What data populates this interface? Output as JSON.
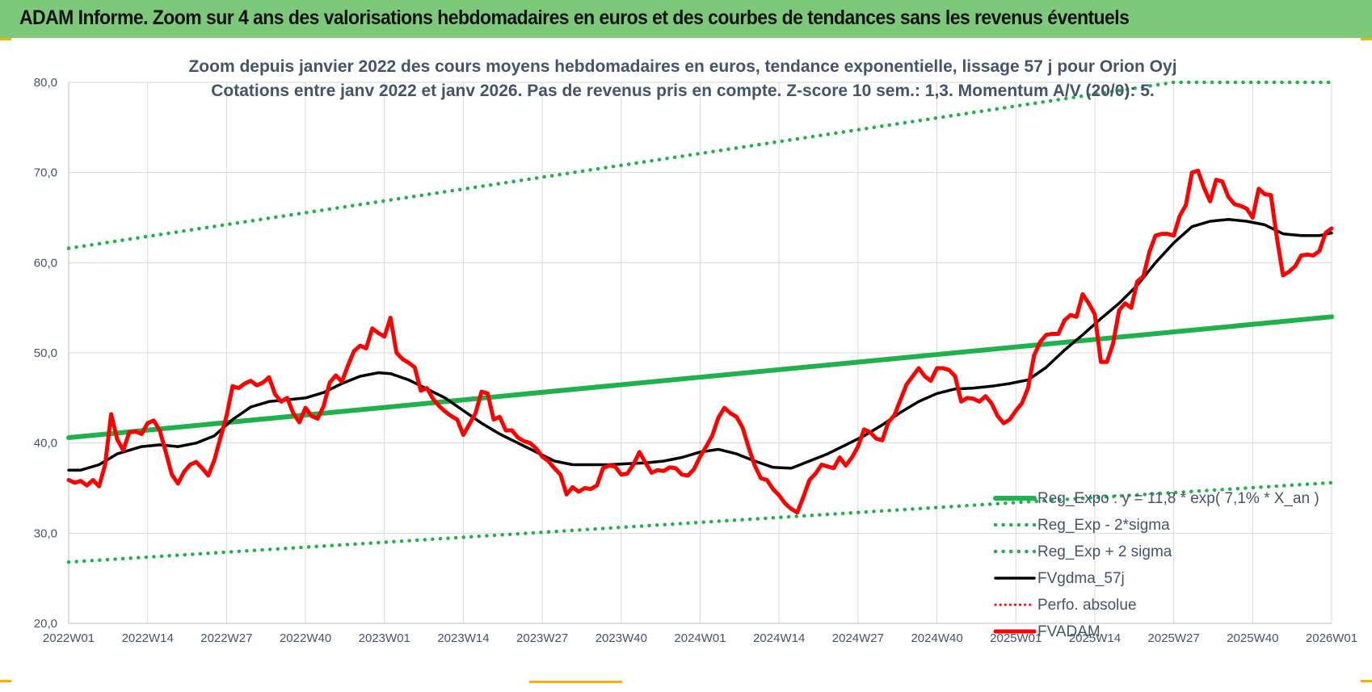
{
  "header": {
    "title": "ADAM Informe. Zoom sur 4 ans des valorisations hebdomadaires en euros et des courbes de tendances sans les revenus éventuels"
  },
  "colors": {
    "header_bg": "#7dc97a",
    "green": "#1fb14c",
    "red": "#ff0000",
    "black": "#000000",
    "text": "#44546a",
    "grid": "#d9d9d9"
  },
  "chart_data": {
    "type": "line",
    "subtitle_line1": "Zoom depuis janvier 2022 des cours moyens hebdomadaires en euros, tendance exponentielle, lissage 57 j pour Orion Oyj",
    "subtitle_line2": "Cotations entre janv 2022 et janv 2026. Pas de revenus pris en compte. Z-score 10 sem.: 1,3. Momentum A/V (20/0): 5.",
    "ylim": [
      20,
      80
    ],
    "ytick_values": [
      20,
      30,
      40,
      50,
      60,
      70,
      80
    ],
    "ytick_labels": [
      "20,0",
      "30,0",
      "40,0",
      "50,0",
      "60,0",
      "70,0",
      "80,0"
    ],
    "x_week_range": [
      0,
      208
    ],
    "xtick_weeks": [
      0,
      13,
      26,
      39,
      52,
      65,
      78,
      91,
      104,
      117,
      130,
      143,
      156,
      169,
      182,
      195,
      208
    ],
    "xtick_labels": [
      "2022W01",
      "2022W14",
      "2022W27",
      "2022W40",
      "2023W01",
      "2023W14",
      "2023W27",
      "2023W40",
      "2024W01",
      "2024W14",
      "2024W27",
      "2024W40",
      "2025W01",
      "2025W14",
      "2025W27",
      "2025W40",
      "2026W01"
    ],
    "series": [
      {
        "name": "Reg_Expo : y = 11,8 * exp( 7,1% *  X_an )",
        "style": "solid-green",
        "points": [
          [
            0,
            40.6
          ],
          [
            208,
            54.0
          ]
        ]
      },
      {
        "name": "Reg_Exp - 2*sigma",
        "style": "dotted-green",
        "points": [
          [
            0,
            26.8
          ],
          [
            208,
            35.6
          ]
        ]
      },
      {
        "name": "Reg_Exp + 2 sigma",
        "style": "dotted-green",
        "points": [
          [
            0,
            61.6
          ],
          [
            182,
            80.0
          ],
          [
            208,
            80.0
          ]
        ]
      },
      {
        "name": "FVgdma_57j",
        "style": "solid-black",
        "points": [
          [
            0,
            37.0
          ],
          [
            2,
            37.0
          ],
          [
            5,
            37.6
          ],
          [
            8,
            38.8
          ],
          [
            12,
            39.6
          ],
          [
            15,
            39.8
          ],
          [
            18,
            39.6
          ],
          [
            21,
            40.0
          ],
          [
            24,
            40.8
          ],
          [
            27,
            42.6
          ],
          [
            30,
            44.0
          ],
          [
            33,
            44.6
          ],
          [
            36,
            44.8
          ],
          [
            39,
            45.0
          ],
          [
            42,
            45.6
          ],
          [
            45,
            46.6
          ],
          [
            48,
            47.4
          ],
          [
            51,
            47.8
          ],
          [
            53,
            47.7
          ],
          [
            56,
            47.0
          ],
          [
            59,
            46.0
          ],
          [
            62,
            45.0
          ],
          [
            65,
            43.6
          ],
          [
            68,
            42.2
          ],
          [
            71,
            41.0
          ],
          [
            74,
            40.0
          ],
          [
            77,
            39.0
          ],
          [
            80,
            38.0
          ],
          [
            83,
            37.6
          ],
          [
            86,
            37.6
          ],
          [
            89,
            37.6
          ],
          [
            92,
            37.7
          ],
          [
            95,
            37.8
          ],
          [
            98,
            38.0
          ],
          [
            101,
            38.4
          ],
          [
            104,
            39.0
          ],
          [
            107,
            39.3
          ],
          [
            110,
            38.8
          ],
          [
            113,
            38.0
          ],
          [
            116,
            37.3
          ],
          [
            119,
            37.2
          ],
          [
            122,
            38.0
          ],
          [
            125,
            38.8
          ],
          [
            128,
            39.8
          ],
          [
            131,
            40.8
          ],
          [
            134,
            42.0
          ],
          [
            137,
            43.4
          ],
          [
            140,
            44.6
          ],
          [
            143,
            45.5
          ],
          [
            146,
            46.0
          ],
          [
            149,
            46.1
          ],
          [
            152,
            46.3
          ],
          [
            155,
            46.6
          ],
          [
            158,
            47.0
          ],
          [
            161,
            48.4
          ],
          [
            164,
            50.3
          ],
          [
            167,
            52.0
          ],
          [
            170,
            53.8
          ],
          [
            173,
            55.5
          ],
          [
            176,
            57.5
          ],
          [
            179,
            60.0
          ],
          [
            182,
            62.2
          ],
          [
            185,
            64.0
          ],
          [
            188,
            64.6
          ],
          [
            191,
            64.8
          ],
          [
            194,
            64.6
          ],
          [
            197,
            64.2
          ],
          [
            200,
            63.2
          ],
          [
            203,
            63.0
          ],
          [
            206,
            63.0
          ],
          [
            208,
            63.3
          ]
        ]
      },
      {
        "name": "Perfo. absolue",
        "style": "dotted-red",
        "points": []
      },
      {
        "name": "FVADAM",
        "style": "solid-red",
        "points": [
          [
            0,
            35.9
          ],
          [
            1,
            35.6
          ],
          [
            2,
            35.8
          ],
          [
            3,
            35.3
          ],
          [
            4,
            35.9
          ],
          [
            5,
            35.2
          ],
          [
            6,
            37.6
          ],
          [
            7,
            43.2
          ],
          [
            8,
            40.4
          ],
          [
            9,
            39.2
          ],
          [
            10,
            41.2
          ],
          [
            11,
            41.3
          ],
          [
            12,
            41.0
          ],
          [
            13,
            42.2
          ],
          [
            14,
            42.5
          ],
          [
            15,
            41.4
          ],
          [
            16,
            39.0
          ],
          [
            17,
            36.5
          ],
          [
            18,
            35.5
          ],
          [
            19,
            36.8
          ],
          [
            20,
            37.6
          ],
          [
            21,
            37.9
          ],
          [
            22,
            37.2
          ],
          [
            23,
            36.4
          ],
          [
            24,
            38.1
          ],
          [
            25,
            40.6
          ],
          [
            26,
            43.0
          ],
          [
            27,
            46.3
          ],
          [
            28,
            46.1
          ],
          [
            29,
            46.6
          ],
          [
            30,
            46.9
          ],
          [
            31,
            46.4
          ],
          [
            32,
            46.7
          ],
          [
            33,
            47.3
          ],
          [
            34,
            45.4
          ],
          [
            35,
            44.6
          ],
          [
            36,
            45.0
          ],
          [
            37,
            43.3
          ],
          [
            38,
            42.3
          ],
          [
            39,
            43.9
          ],
          [
            40,
            43.0
          ],
          [
            41,
            42.7
          ],
          [
            42,
            44.1
          ],
          [
            43,
            46.7
          ],
          [
            44,
            47.5
          ],
          [
            45,
            46.8
          ],
          [
            46,
            48.6
          ],
          [
            47,
            50.2
          ],
          [
            48,
            50.8
          ],
          [
            49,
            50.5
          ],
          [
            50,
            52.7
          ],
          [
            51,
            52.2
          ],
          [
            52,
            51.8
          ],
          [
            53,
            53.9
          ],
          [
            54,
            50.0
          ],
          [
            55,
            49.3
          ],
          [
            56,
            48.9
          ],
          [
            57,
            48.4
          ],
          [
            58,
            45.8
          ],
          [
            59,
            46.1
          ],
          [
            60,
            44.9
          ],
          [
            61,
            44.1
          ],
          [
            62,
            43.5
          ],
          [
            63,
            43.0
          ],
          [
            64,
            42.6
          ],
          [
            65,
            40.9
          ],
          [
            66,
            42.1
          ],
          [
            67,
            43.3
          ],
          [
            68,
            45.7
          ],
          [
            69,
            45.5
          ],
          [
            70,
            42.6
          ],
          [
            71,
            42.9
          ],
          [
            72,
            41.4
          ],
          [
            73,
            41.4
          ],
          [
            74,
            40.6
          ],
          [
            75,
            40.2
          ],
          [
            76,
            40.0
          ],
          [
            77,
            39.4
          ],
          [
            78,
            38.5
          ],
          [
            79,
            38.0
          ],
          [
            80,
            37.2
          ],
          [
            81,
            36.5
          ],
          [
            82,
            34.3
          ],
          [
            83,
            35.1
          ],
          [
            84,
            34.6
          ],
          [
            85,
            35.0
          ],
          [
            86,
            34.9
          ],
          [
            87,
            35.3
          ],
          [
            88,
            37.2
          ],
          [
            89,
            37.5
          ],
          [
            90,
            37.4
          ],
          [
            91,
            36.5
          ],
          [
            92,
            36.6
          ],
          [
            93,
            37.6
          ],
          [
            94,
            39.0
          ],
          [
            95,
            37.8
          ],
          [
            96,
            36.7
          ],
          [
            97,
            37.0
          ],
          [
            98,
            36.9
          ],
          [
            99,
            37.3
          ],
          [
            100,
            37.2
          ],
          [
            101,
            36.5
          ],
          [
            102,
            36.4
          ],
          [
            103,
            37.1
          ],
          [
            104,
            38.5
          ],
          [
            105,
            39.6
          ],
          [
            106,
            40.8
          ],
          [
            107,
            42.8
          ],
          [
            108,
            43.9
          ],
          [
            109,
            43.3
          ],
          [
            110,
            42.9
          ],
          [
            111,
            41.7
          ],
          [
            112,
            39.5
          ],
          [
            113,
            37.5
          ],
          [
            114,
            36.1
          ],
          [
            115,
            35.9
          ],
          [
            116,
            34.9
          ],
          [
            117,
            34.2
          ],
          [
            118,
            33.3
          ],
          [
            119,
            32.7
          ],
          [
            120,
            32.3
          ],
          [
            121,
            34.0
          ],
          [
            122,
            35.9
          ],
          [
            123,
            36.6
          ],
          [
            124,
            37.6
          ],
          [
            125,
            37.4
          ],
          [
            126,
            37.2
          ],
          [
            127,
            38.4
          ],
          [
            128,
            37.5
          ],
          [
            129,
            38.4
          ],
          [
            130,
            39.6
          ],
          [
            131,
            41.5
          ],
          [
            132,
            41.2
          ],
          [
            133,
            40.5
          ],
          [
            134,
            40.3
          ],
          [
            135,
            42.3
          ],
          [
            136,
            43.1
          ],
          [
            137,
            44.8
          ],
          [
            138,
            46.5
          ],
          [
            139,
            47.4
          ],
          [
            140,
            48.3
          ],
          [
            141,
            47.4
          ],
          [
            142,
            46.9
          ],
          [
            143,
            48.3
          ],
          [
            144,
            48.3
          ],
          [
            145,
            48.1
          ],
          [
            146,
            47.4
          ],
          [
            147,
            44.6
          ],
          [
            148,
            45.0
          ],
          [
            149,
            44.9
          ],
          [
            150,
            44.6
          ],
          [
            151,
            45.2
          ],
          [
            152,
            44.4
          ],
          [
            153,
            43.0
          ],
          [
            154,
            42.2
          ],
          [
            155,
            42.6
          ],
          [
            156,
            43.6
          ],
          [
            157,
            44.4
          ],
          [
            158,
            46.1
          ],
          [
            159,
            49.7
          ],
          [
            160,
            51.2
          ],
          [
            161,
            52.0
          ],
          [
            162,
            52.1
          ],
          [
            163,
            52.1
          ],
          [
            164,
            53.6
          ],
          [
            165,
            54.2
          ],
          [
            166,
            54.0
          ],
          [
            167,
            56.5
          ],
          [
            168,
            55.5
          ],
          [
            169,
            54.3
          ],
          [
            170,
            49.0
          ],
          [
            171,
            49.0
          ],
          [
            172,
            51.0
          ],
          [
            173,
            54.7
          ],
          [
            174,
            55.5
          ],
          [
            175,
            55.0
          ],
          [
            176,
            57.9
          ],
          [
            177,
            58.5
          ],
          [
            178,
            61.2
          ],
          [
            179,
            63.0
          ],
          [
            180,
            63.2
          ],
          [
            181,
            63.2
          ],
          [
            182,
            63.0
          ],
          [
            183,
            65.2
          ],
          [
            184,
            66.4
          ],
          [
            185,
            70.0
          ],
          [
            186,
            70.2
          ],
          [
            187,
            68.3
          ],
          [
            188,
            66.8
          ],
          [
            189,
            69.2
          ],
          [
            190,
            69.0
          ],
          [
            191,
            67.3
          ],
          [
            192,
            66.5
          ],
          [
            193,
            66.3
          ],
          [
            194,
            66.0
          ],
          [
            195,
            65.0
          ],
          [
            196,
            68.2
          ],
          [
            197,
            67.6
          ],
          [
            198,
            67.5
          ],
          [
            199,
            62.7
          ],
          [
            200,
            58.6
          ],
          [
            201,
            59.0
          ],
          [
            202,
            59.6
          ],
          [
            203,
            60.8
          ],
          [
            204,
            60.9
          ],
          [
            205,
            60.8
          ],
          [
            206,
            61.3
          ],
          [
            207,
            63.3
          ],
          [
            208,
            63.8
          ]
        ]
      }
    ]
  }
}
